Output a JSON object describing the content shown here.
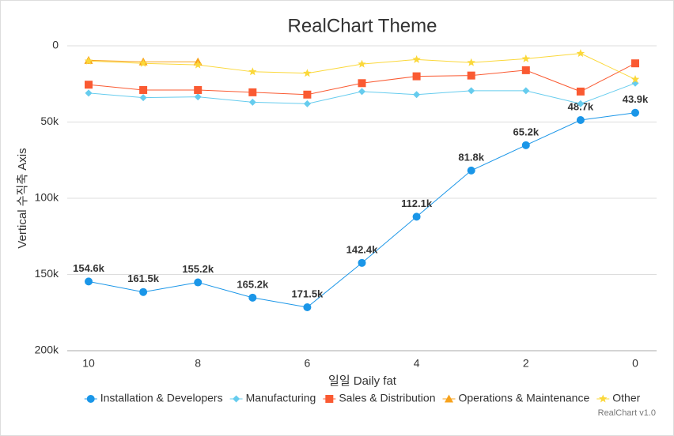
{
  "chart_data": {
    "type": "line",
    "title": "RealChart Theme",
    "x_label": "일일 Daily fat",
    "y_label": "Vertical 수직축 Axis",
    "credits": "RealChart v1.0",
    "x": [
      10,
      9,
      8,
      7,
      6,
      5,
      4,
      3,
      2,
      1,
      0
    ],
    "xlim": [
      10,
      0
    ],
    "xticks": [
      10,
      8,
      6,
      4,
      2,
      0
    ],
    "ylim": [
      0,
      200000
    ],
    "y_reversed": true,
    "yticks": [
      0,
      {
        "value": 50000,
        "label": "50k"
      },
      {
        "value": 100000,
        "label": "100k"
      },
      {
        "value": 150000,
        "label": "150k"
      },
      {
        "value": 200000,
        "label": "200k"
      }
    ],
    "grid": true,
    "legend": "bottom",
    "series": [
      {
        "name": "Installation & Developers",
        "color": "#1a96e8",
        "marker": "circle",
        "values": [
          154600,
          161500,
          155200,
          165200,
          171500,
          142400,
          112100,
          81800,
          65200,
          48700,
          43900
        ],
        "value_labels": [
          "154.6k",
          "161.5k",
          "155.2k",
          "165.2k",
          "171.5k",
          "142.4k",
          "112.1k",
          "81.8k",
          "65.2k",
          "48.7k",
          "43.9k"
        ]
      },
      {
        "name": "Manufacturing",
        "color": "#66ccee",
        "marker": "diamond",
        "values": [
          31000,
          34000,
          33500,
          37000,
          38000,
          30000,
          32000,
          29500,
          29500,
          38000,
          24500
        ]
      },
      {
        "name": "Sales & Distribution",
        "color": "#fa5a32",
        "marker": "square",
        "values": [
          25500,
          29000,
          29000,
          30500,
          32000,
          24500,
          20000,
          19500,
          16000,
          30000,
          11500
        ]
      },
      {
        "name": "Operations & Maintenance",
        "color": "#f7a21b",
        "marker": "triangle",
        "values": [
          9500,
          10500,
          10500,
          null,
          null,
          null,
          null,
          null,
          null,
          null,
          null
        ]
      },
      {
        "name": "Other",
        "color": "#fbd83a",
        "marker": "star",
        "values": [
          10000,
          11500,
          12500,
          17000,
          18000,
          12000,
          9000,
          11000,
          8500,
          5000,
          22000
        ]
      }
    ]
  }
}
